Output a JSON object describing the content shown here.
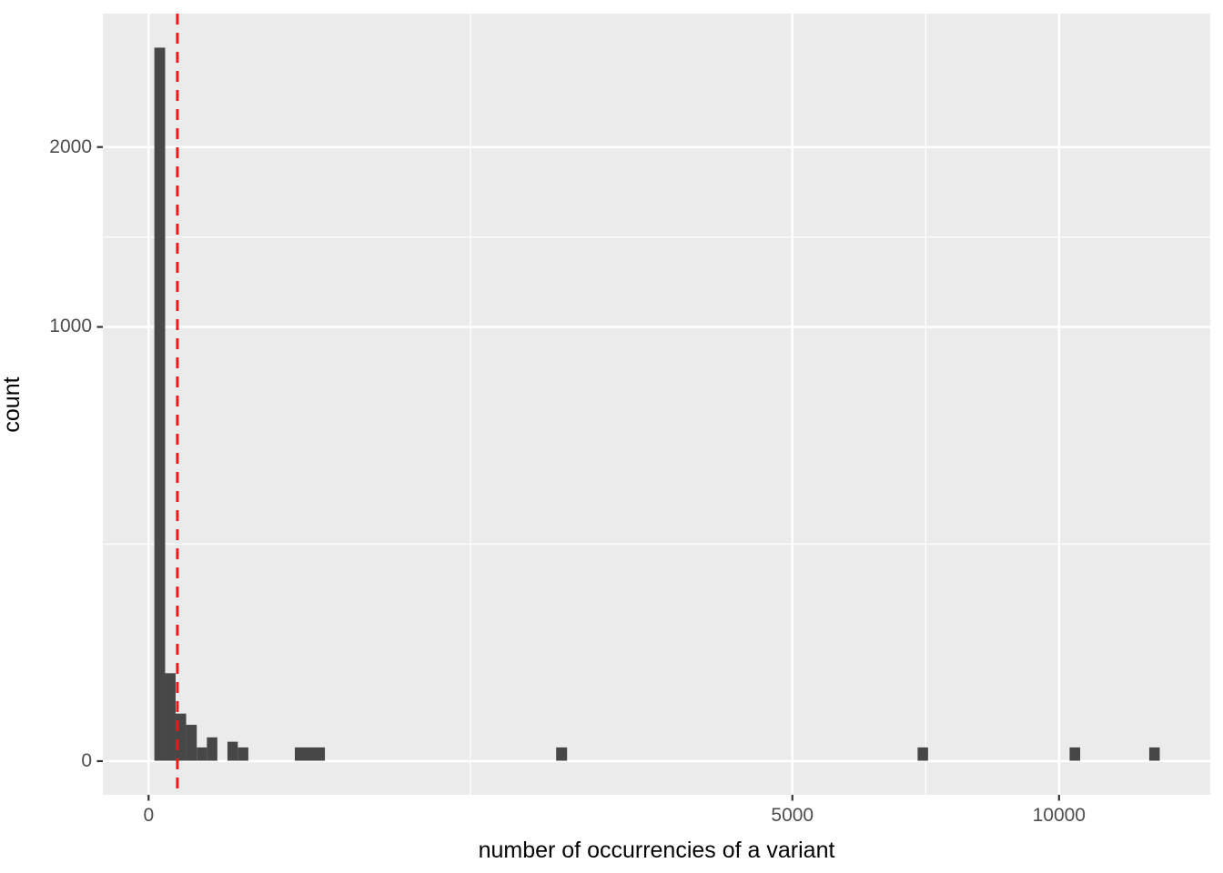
{
  "chart_data": {
    "type": "histogram",
    "title": "",
    "xlabel": "number of occurrencies of a variant",
    "ylabel": "count",
    "x_scale": "sqrt",
    "y_scale": "sqrt",
    "x_ticks": [
      {
        "value": 0,
        "label": "0"
      },
      {
        "value": 5000,
        "label": "5000"
      },
      {
        "value": 10000,
        "label": "10000"
      }
    ],
    "y_ticks": [
      {
        "value": 0,
        "label": "0"
      },
      {
        "value": 1000,
        "label": "1000"
      },
      {
        "value": 2000,
        "label": "2000"
      }
    ],
    "xlim": [
      -250,
      12800
    ],
    "ylim": [
      0,
      2700
    ],
    "grid": "on",
    "legend": "none",
    "bins": [
      {
        "from": 0.4,
        "to": 3.3,
        "count": 2700
      },
      {
        "from": 3.3,
        "to": 8.8,
        "count": 41
      },
      {
        "from": 8.8,
        "to": 17,
        "count": 12
      },
      {
        "from": 17,
        "to": 28,
        "count": 7
      },
      {
        "from": 28,
        "to": 41,
        "count": 1
      },
      {
        "from": 41,
        "to": 57,
        "count": 3
      },
      {
        "from": 75,
        "to": 96,
        "count": 2
      },
      {
        "from": 96,
        "to": 120,
        "count": 1
      },
      {
        "from": 258,
        "to": 375,
        "count": 1
      },
      {
        "from": 2004,
        "to": 2113,
        "count": 1
      },
      {
        "from": 7135,
        "to": 7330,
        "count": 1
      },
      {
        "from": 10234,
        "to": 10470,
        "count": 1
      },
      {
        "from": 12080,
        "to": 12335,
        "count": 1
      }
    ],
    "vline": {
      "x": 10,
      "style": "dashed",
      "color": "#f21616"
    },
    "colors": {
      "panel_background": "#ebebeb",
      "gridline": "#ffffff",
      "bar_fill": "#474747",
      "tick_label": "#4d4d4d",
      "tick_mark": "#333333",
      "axis_title": "#000000",
      "vline": "#f21616"
    }
  }
}
